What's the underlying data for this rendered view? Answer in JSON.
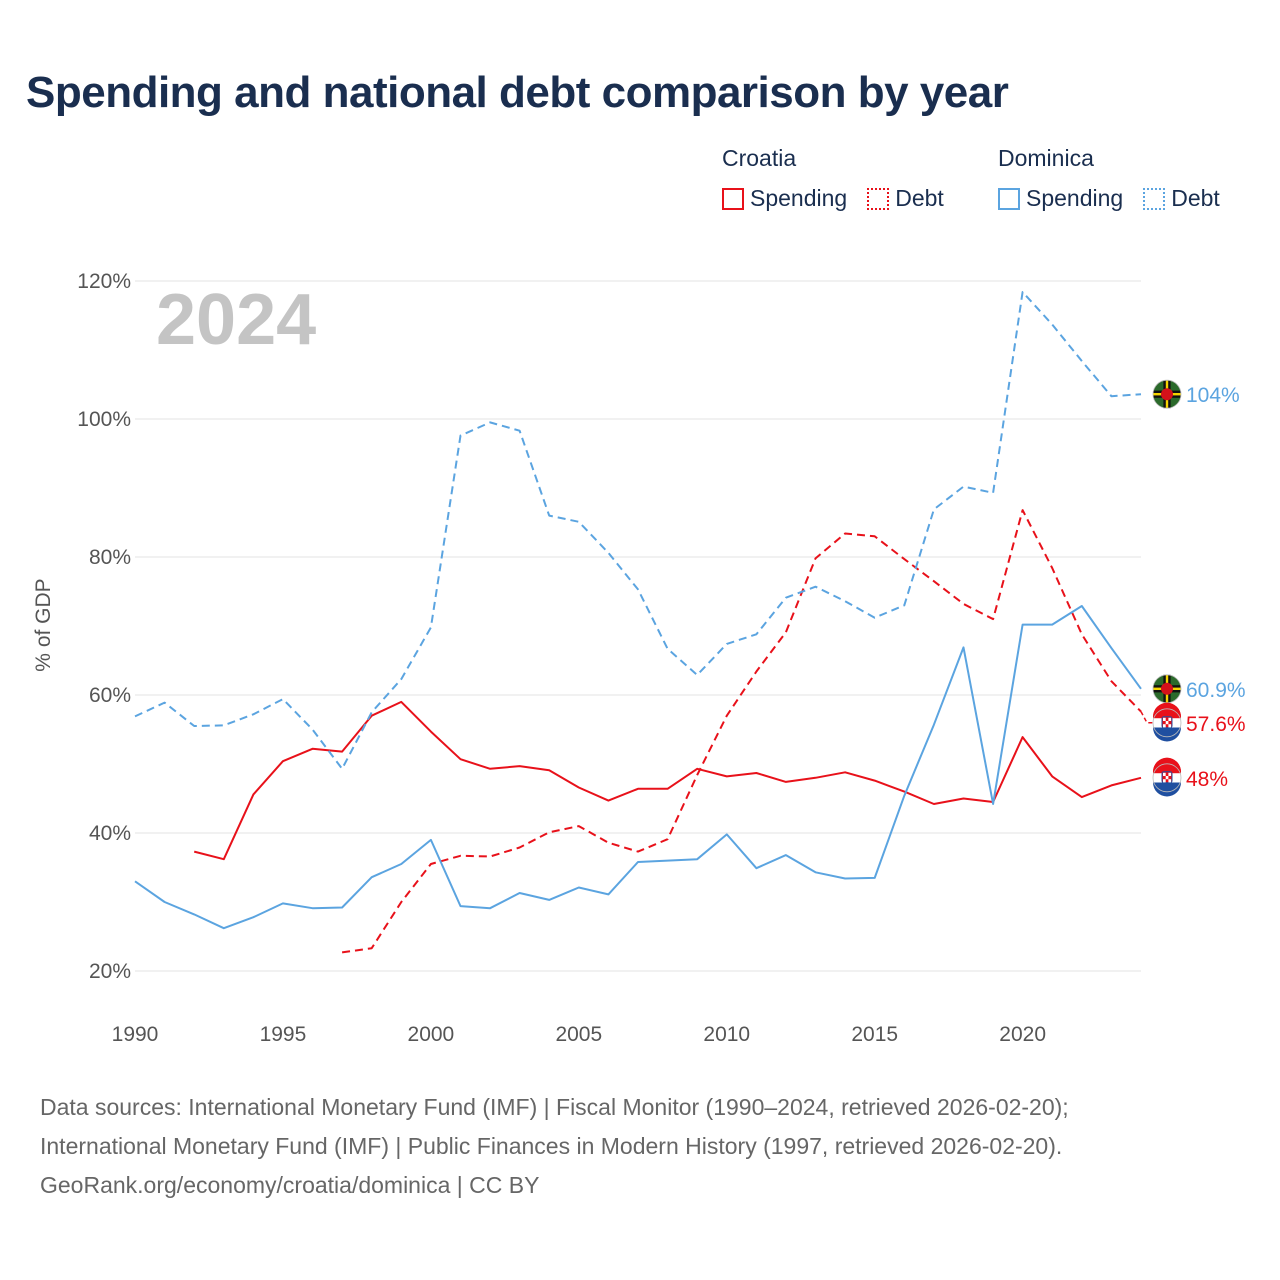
{
  "title": "Spending and national debt comparison by year",
  "legend": {
    "groups": [
      {
        "country": "Croatia",
        "spending_label": "Spending",
        "debt_label": "Debt",
        "color": "#e8111a"
      },
      {
        "country": "Dominica",
        "spending_label": "Spending",
        "debt_label": "Debt",
        "color": "#5ba4e0"
      }
    ]
  },
  "footer": {
    "line1": "Data sources: International Monetary Fund (IMF) | Fiscal Monitor (1990–2024, retrieved 2026-02-20);",
    "line2": "International Monetary Fund (IMF) | Public Finances in Modern History (1997, retrieved 2026-02-20).",
    "line3": "GeoRank.org/economy/croatia/dominica | CC BY"
  },
  "chart_data": {
    "type": "line",
    "year_watermark": "2024",
    "ylabel": "% of GDP",
    "xlim": [
      1990,
      2024
    ],
    "ylim": [
      20,
      120
    ],
    "y_ticks": [
      20,
      40,
      60,
      80,
      100,
      120
    ],
    "y_tick_labels": [
      "20%",
      "40%",
      "60%",
      "80%",
      "100%",
      "120%"
    ],
    "x_ticks": [
      1990,
      1995,
      2000,
      2005,
      2010,
      2015,
      2020
    ],
    "x_tick_labels": [
      "1990",
      "1995",
      "2000",
      "2005",
      "2010",
      "2015",
      "2020"
    ],
    "series": [
      {
        "name": "Croatia Spending",
        "country": "Croatia",
        "kind": "spending",
        "color": "#e8111a",
        "flag": "croatia",
        "start_year": 1992,
        "values": [
          37.3,
          36.2,
          45.6,
          50.4,
          52.2,
          51.8,
          57.0,
          59.0,
          54.7,
          50.7,
          49.3,
          49.7,
          49.1,
          46.6,
          44.7,
          46.4,
          46.4,
          49.3,
          48.2,
          48.7,
          47.4,
          48.0,
          48.8,
          47.6,
          46.0,
          44.2,
          45.0,
          44.5,
          53.9,
          48.2,
          45.2,
          46.9,
          48.0
        ],
        "end_label": "48%"
      },
      {
        "name": "Croatia Debt",
        "country": "Croatia",
        "kind": "debt",
        "color": "#e8111a",
        "flag": "croatia",
        "start_year": 1997,
        "values": [
          22.7,
          23.3,
          30.0,
          35.5,
          36.7,
          36.6,
          37.9,
          40.1,
          41.0,
          38.6,
          37.3,
          39.1,
          48.4,
          57.0,
          63.4,
          69.1,
          79.8,
          83.4,
          83.0,
          79.7,
          76.5,
          73.2,
          71.0,
          86.8,
          78.4,
          68.8,
          62.0,
          57.6
        ],
        "end_label": "57.6%"
      },
      {
        "name": "Dominica Spending",
        "country": "Dominica",
        "kind": "spending",
        "color": "#5ba4e0",
        "flag": "dominica",
        "start_year": 1990,
        "values": [
          33.0,
          30.0,
          28.2,
          26.2,
          27.8,
          29.8,
          29.1,
          29.2,
          33.6,
          35.5,
          39.0,
          29.4,
          29.1,
          31.3,
          30.3,
          32.1,
          31.1,
          35.8,
          36.0,
          36.2,
          39.8,
          34.9,
          36.8,
          34.3,
          33.4,
          33.5,
          45.4,
          55.7,
          66.9,
          44.2,
          70.2,
          70.2,
          72.9,
          66.8,
          60.9
        ],
        "end_label": "60.9%"
      },
      {
        "name": "Dominica Debt",
        "country": "Dominica",
        "kind": "debt",
        "color": "#5ba4e0",
        "flag": "dominica",
        "start_year": 1990,
        "values": [
          56.9,
          58.9,
          55.5,
          55.6,
          57.2,
          59.4,
          55.0,
          49.3,
          57.5,
          62.3,
          69.8,
          97.6,
          99.5,
          98.3,
          86.0,
          85.1,
          80.6,
          75.3,
          66.7,
          62.9,
          67.4,
          68.8,
          74.1,
          75.7,
          73.6,
          71.2,
          73.0,
          86.9,
          90.2,
          89.3,
          118.4,
          113.7,
          108.4,
          103.3,
          103.6
        ],
        "end_label": "104%"
      }
    ]
  }
}
